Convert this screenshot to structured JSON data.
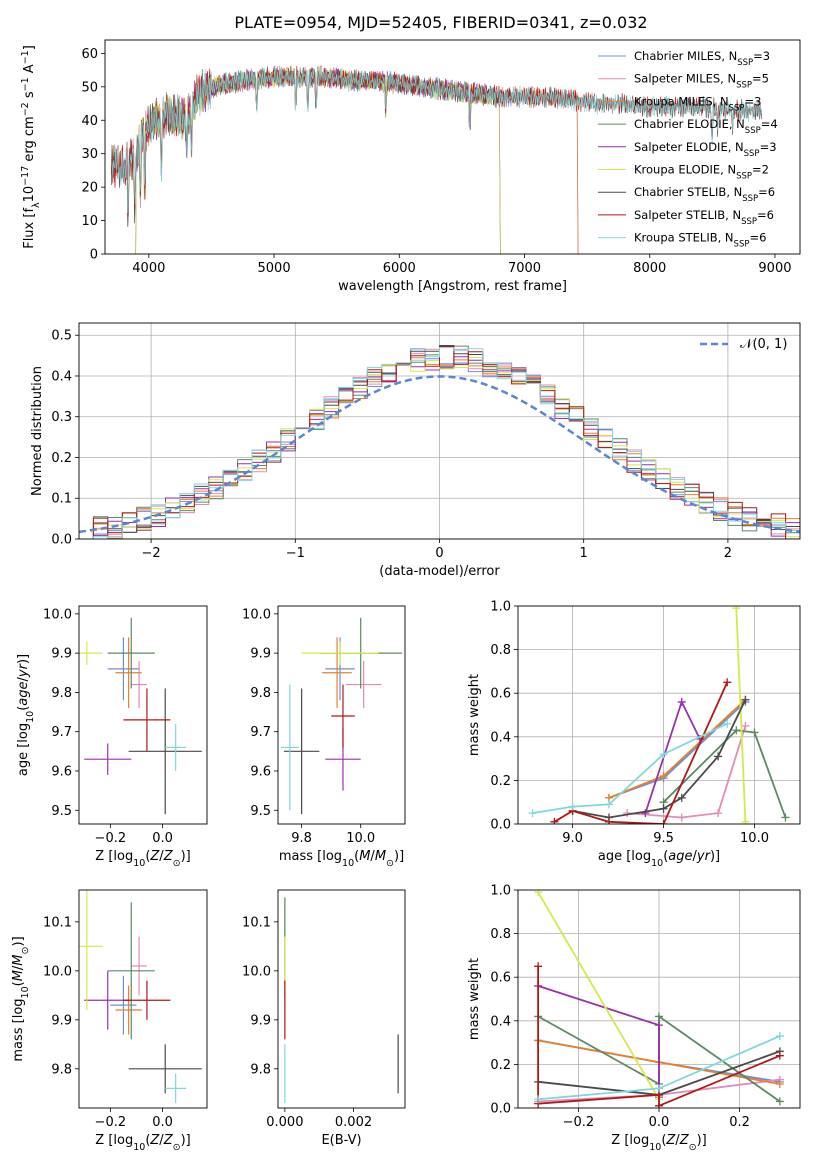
{
  "colors": {
    "Chabrier MILES": "#6b8fd6",
    "Salpeter MILES": "#e48ab8",
    "Kroupa MILES": "#e8802a",
    "Chabrier ELODIE": "#5b8a63",
    "Salpeter ELODIE": "#9b2fae",
    "Kroupa ELODIE": "#d7e84a",
    "Chabrier STELIB": "#4a4a4a",
    "Salpeter STELIB": "#b01818",
    "Kroupa STELIB": "#7fd8dc",
    "gauss": "#5b86d3"
  },
  "chart_data": [
    {
      "type": "line",
      "title": "PLATE=0954, MJD=52405, FIBERID=0341, z=0.032",
      "xlabel": "wavelength [Angstrom, rest frame]",
      "ylabel": "Flux [f_λ 10^-17 erg cm^-2 s^-1 A^-1]",
      "xlim": [
        3650,
        9200
      ],
      "ylim": [
        0,
        64
      ],
      "xticks": [
        4000,
        5000,
        6000,
        7000,
        8000,
        9000
      ],
      "yticks": [
        0,
        10,
        20,
        30,
        40,
        50,
        60
      ],
      "legend_position": "top-right",
      "legend": [
        {
          "name": "Chabrier MILES, N",
          "sub": "SSP",
          "n": "=3"
        },
        {
          "name": "Salpeter MILES, N",
          "sub": "SSP",
          "n": "=5"
        },
        {
          "name": "Kroupa MILES, N",
          "sub": "SSP",
          "n": "=3"
        },
        {
          "name": "Chabrier ELODIE, N",
          "sub": "SSP",
          "n": "=4"
        },
        {
          "name": "Salpeter ELODIE, N",
          "sub": "SSP",
          "n": "=3"
        },
        {
          "name": "Kroupa ELODIE, N",
          "sub": "SSP",
          "n": "=2"
        },
        {
          "name": "Chabrier STELIB, N",
          "sub": "SSP",
          "n": "=6"
        },
        {
          "name": "Salpeter STELIB, N",
          "sub": "SSP",
          "n": "=6"
        },
        {
          "name": "Kroupa STELIB, N",
          "sub": "SSP",
          "n": "=6"
        }
      ],
      "continuum": [
        [
          3700,
          27
        ],
        [
          3800,
          26
        ],
        [
          3900,
          30
        ],
        [
          3950,
          36
        ],
        [
          4050,
          40
        ],
        [
          4150,
          42
        ],
        [
          4300,
          40
        ],
        [
          4400,
          48
        ],
        [
          4600,
          51
        ],
        [
          4800,
          52
        ],
        [
          5000,
          53
        ],
        [
          5200,
          53
        ],
        [
          5400,
          53
        ],
        [
          5600,
          52
        ],
        [
          5800,
          52
        ],
        [
          6000,
          51
        ],
        [
          6200,
          50
        ],
        [
          6400,
          49
        ],
        [
          6600,
          48
        ],
        [
          6800,
          47
        ],
        [
          7000,
          47
        ],
        [
          7200,
          47
        ],
        [
          7400,
          46
        ],
        [
          7600,
          45
        ],
        [
          7800,
          45
        ],
        [
          8000,
          44
        ],
        [
          8200,
          44
        ],
        [
          8400,
          44
        ],
        [
          8600,
          43
        ],
        [
          8900,
          43
        ]
      ],
      "series_ranges": [
        {
          "name": "Chabrier MILES",
          "x": [
            3700,
            7420
          ]
        },
        {
          "name": "Salpeter MILES",
          "x": [
            3700,
            7420
          ]
        },
        {
          "name": "Kroupa MILES",
          "x": [
            3700,
            7420
          ]
        },
        {
          "name": "Chabrier ELODIE",
          "x": [
            3900,
            6800
          ]
        },
        {
          "name": "Salpeter ELODIE",
          "x": [
            3900,
            6800
          ]
        },
        {
          "name": "Kroupa ELODIE",
          "x": [
            3900,
            6800
          ]
        },
        {
          "name": "Chabrier STELIB",
          "x": [
            3700,
            8900
          ]
        },
        {
          "name": "Salpeter STELIB",
          "x": [
            3700,
            8900
          ]
        },
        {
          "name": "Kroupa STELIB",
          "x": [
            3700,
            8900
          ]
        }
      ]
    },
    {
      "type": "line",
      "xlabel": "(data-model)/error",
      "ylabel": "Normed distribution",
      "xlim": [
        -2.5,
        2.5
      ],
      "ylim": [
        0,
        0.53
      ],
      "xticks": [
        -2,
        -1,
        0,
        1,
        2
      ],
      "yticks": [
        0.0,
        0.1,
        0.2,
        0.3,
        0.4,
        0.5
      ],
      "legend": [
        {
          "name": "𝒩(0, 1)"
        }
      ],
      "legend_position": "top-right",
      "step_histograms": "one step histogram per model, 0.1 bins, approx. normal(0,1)"
    },
    {
      "type": "scatter",
      "xlabel": "Z [log10(Z/Z☉)]",
      "ylabel": "age  [log10(age/yr)]",
      "xlim": [
        -0.32,
        0.17
      ],
      "ylim": [
        9.465,
        10.02
      ],
      "xticks": [
        -0.2,
        0.0
      ],
      "yticks": [
        9.5,
        9.6,
        9.7,
        9.8,
        9.9,
        10.0
      ],
      "points": [
        {
          "name": "Chabrier MILES",
          "x": -0.15,
          "y": 9.86,
          "xe": 0.06,
          "ye": 0.08
        },
        {
          "name": "Salpeter MILES",
          "x": -0.09,
          "y": 9.82,
          "xe": 0.03,
          "ye": 0.06
        },
        {
          "name": "Kroupa MILES",
          "x": -0.13,
          "y": 9.85,
          "xe": 0.05,
          "ye": 0.09
        },
        {
          "name": "Chabrier ELODIE",
          "x": -0.12,
          "y": 9.9,
          "xe": 0.09,
          "ye": 0.09
        },
        {
          "name": "Salpeter ELODIE",
          "x": -0.21,
          "y": 9.63,
          "xe": 0.09,
          "ye": 0.04
        },
        {
          "name": "Kroupa ELODIE",
          "x": -0.29,
          "y": 9.9,
          "xe": 0.06,
          "ye": 0.03
        },
        {
          "name": "Chabrier STELIB",
          "x": 0.01,
          "y": 9.65,
          "xe": 0.14,
          "ye": 0.16
        },
        {
          "name": "Salpeter STELIB",
          "x": -0.06,
          "y": 9.73,
          "xe": 0.09,
          "ye": 0.08
        },
        {
          "name": "Kroupa STELIB",
          "x": 0.05,
          "y": 9.66,
          "xe": 0.04,
          "ye": 0.06
        }
      ]
    },
    {
      "type": "scatter",
      "xlabel": "mass [log10(M/M☉)]",
      "ylabel": "",
      "xlim": [
        9.72,
        10.15
      ],
      "ylim": [
        9.465,
        10.02
      ],
      "xticks": [
        9.8,
        10.0
      ],
      "yticks": [
        9.5,
        9.6,
        9.7,
        9.8,
        9.9,
        10.0
      ],
      "points": [
        {
          "name": "Chabrier MILES",
          "x": 9.93,
          "y": 9.86,
          "xe": 0.05,
          "ye": 0.08
        },
        {
          "name": "Salpeter MILES",
          "x": 10.01,
          "y": 9.82,
          "xe": 0.06,
          "ye": 0.06
        },
        {
          "name": "Kroupa MILES",
          "x": 9.92,
          "y": 9.85,
          "xe": 0.05,
          "ye": 0.09
        },
        {
          "name": "Chabrier ELODIE",
          "x": 10.0,
          "y": 9.9,
          "xe": 0.14,
          "ye": 0.09
        },
        {
          "name": "Salpeter ELODIE",
          "x": 9.94,
          "y": 9.63,
          "xe": 0.06,
          "ye": 0.08
        },
        {
          "name": "Kroupa ELODIE",
          "x": 9.93,
          "y": 9.9,
          "xe": 0.13,
          "ye": 0.03
        },
        {
          "name": "Chabrier STELIB",
          "x": 9.8,
          "y": 9.65,
          "xe": 0.06,
          "ye": 0.16
        },
        {
          "name": "Salpeter STELIB",
          "x": 9.94,
          "y": 9.74,
          "xe": 0.04,
          "ye": 0.08
        },
        {
          "name": "Kroupa STELIB",
          "x": 9.76,
          "y": 9.66,
          "xe": 0.03,
          "ye": 0.16
        }
      ]
    },
    {
      "type": "line",
      "xlabel": "age  [log10(age/yr)]",
      "ylabel": "mass weight",
      "xlim": [
        8.7,
        10.25
      ],
      "ylim": [
        0,
        1
      ],
      "xticks": [
        9.0,
        9.5,
        10.0
      ],
      "yticks": [
        0.0,
        0.2,
        0.4,
        0.6,
        0.8,
        1.0
      ],
      "series": [
        {
          "name": "Chabrier MILES",
          "x": [
            9.2,
            9.5,
            9.95
          ],
          "y": [
            0.12,
            0.21,
            0.56
          ]
        },
        {
          "name": "Salpeter MILES",
          "x": [
            9.3,
            9.6,
            9.8,
            9.95
          ],
          "y": [
            0.05,
            0.03,
            0.05,
            0.45
          ]
        },
        {
          "name": "Kroupa MILES",
          "x": [
            9.2,
            9.5,
            9.95
          ],
          "y": [
            0.12,
            0.22,
            0.57
          ]
        },
        {
          "name": "Chabrier ELODIE",
          "x": [
            9.5,
            9.9,
            10.0,
            10.17
          ],
          "y": [
            0.1,
            0.43,
            0.42,
            0.03
          ]
        },
        {
          "name": "Salpeter ELODIE",
          "x": [
            9.4,
            9.6,
            9.7
          ],
          "y": [
            0.05,
            0.56,
            0.39
          ]
        },
        {
          "name": "Kroupa ELODIE",
          "x": [
            9.9,
            9.95
          ],
          "y": [
            0.99,
            0.01
          ]
        },
        {
          "name": "Chabrier STELIB",
          "x": [
            9.0,
            9.2,
            9.5,
            9.6,
            9.8,
            9.95
          ],
          "y": [
            0.06,
            0.03,
            0.07,
            0.12,
            0.31,
            0.57
          ]
        },
        {
          "name": "Salpeter STELIB",
          "x": [
            8.9,
            9.0,
            9.2,
            9.5,
            9.85
          ],
          "y": [
            0.01,
            0.06,
            0.01,
            0.0,
            0.65
          ]
        },
        {
          "name": "Kroupa STELIB",
          "x": [
            8.78,
            9.0,
            9.2,
            9.5,
            9.85
          ],
          "y": [
            0.05,
            0.08,
            0.09,
            0.32,
            0.46
          ]
        }
      ]
    },
    {
      "type": "scatter",
      "xlabel": "Z [log10(Z/Z☉)]",
      "ylabel": "mass [log10(M/M☉)]",
      "xlim": [
        -0.32,
        0.17
      ],
      "ylim": [
        9.72,
        10.165
      ],
      "xticks": [
        -0.2,
        0.0
      ],
      "yticks": [
        9.8,
        9.9,
        10.0,
        10.1
      ],
      "points": [
        {
          "name": "Chabrier MILES",
          "x": -0.15,
          "y": 9.93,
          "xe": 0.05,
          "ye": 0.06
        },
        {
          "name": "Salpeter MILES",
          "x": -0.09,
          "y": 10.01,
          "xe": 0.03,
          "ye": 0.06
        },
        {
          "name": "Kroupa MILES",
          "x": -0.13,
          "y": 9.92,
          "xe": 0.05,
          "ye": 0.05
        },
        {
          "name": "Chabrier ELODIE",
          "x": -0.12,
          "y": 10.0,
          "xe": 0.09,
          "ye": 0.14
        },
        {
          "name": "Salpeter ELODIE",
          "x": -0.21,
          "y": 9.94,
          "xe": 0.09,
          "ye": 0.06
        },
        {
          "name": "Kroupa ELODIE",
          "x": -0.29,
          "y": 10.05,
          "xe": 0.06,
          "ye": 0.13
        },
        {
          "name": "Chabrier STELIB",
          "x": 0.01,
          "y": 9.8,
          "xe": 0.14,
          "ye": 0.05
        },
        {
          "name": "Salpeter STELIB",
          "x": -0.06,
          "y": 9.94,
          "xe": 0.09,
          "ye": 0.04
        },
        {
          "name": "Kroupa STELIB",
          "x": 0.05,
          "y": 9.76,
          "xe": 0.04,
          "ye": 0.03
        }
      ]
    },
    {
      "type": "scatter",
      "xlabel": "E(B-V)",
      "ylabel": "",
      "xlim": [
        -0.0002,
        0.0035
      ],
      "ylim": [
        9.72,
        10.165
      ],
      "xticks": [
        0.0,
        0.002
      ],
      "yticks": [
        9.8,
        9.9,
        10.0,
        10.1
      ],
      "points": [
        {
          "name": "Chabrier ELODIE",
          "x": 0.0,
          "y": 10.05,
          "xe": 0.0,
          "ye": 0.1
        },
        {
          "name": "Kroupa ELODIE",
          "x": 0.0,
          "y": 10.0,
          "xe": 0.0,
          "ye": 0.07
        },
        {
          "name": "Salpeter STELIB",
          "x": 0.0,
          "y": 9.92,
          "xe": 0.0,
          "ye": 0.06
        },
        {
          "name": "Kroupa STELIB",
          "x": 0.0,
          "y": 9.79,
          "xe": 0.0,
          "ye": 0.06
        },
        {
          "name": "Chabrier STELIB",
          "x": 0.0033,
          "y": 9.81,
          "xe": 0.0,
          "ye": 0.06
        }
      ]
    },
    {
      "type": "line",
      "xlabel": "Z [log10(Z/Z☉)]",
      "ylabel": "mass weight",
      "xlim": [
        -0.35,
        0.35
      ],
      "ylim": [
        0,
        1
      ],
      "xticks": [
        -0.2,
        0.0,
        0.2
      ],
      "yticks": [
        0.0,
        0.2,
        0.4,
        0.6,
        0.8,
        1.0
      ],
      "series": [
        {
          "name": "Chabrier MILES",
          "x": [
            -0.3,
            0.0,
            0.3
          ],
          "y": [
            0.31,
            0.21,
            0.12
          ]
        },
        {
          "name": "Salpeter MILES",
          "x": [
            -0.3,
            0.0,
            0.3
          ],
          "y": [
            0.03,
            0.06,
            0.13
          ]
        },
        {
          "name": "Kroupa MILES",
          "x": [
            -0.3,
            0.0,
            0.3
          ],
          "y": [
            0.31,
            0.21,
            0.11
          ]
        },
        {
          "name": "Chabrier ELODIE",
          "x": [
            -0.3,
            0.0,
            0.0,
            0.3
          ],
          "y": [
            0.42,
            0.11,
            0.42,
            0.03
          ]
        },
        {
          "name": "Salpeter ELODIE",
          "x": [
            -0.3,
            0.0,
            0.0
          ],
          "y": [
            0.56,
            0.38,
            0.05
          ]
        },
        {
          "name": "Kroupa ELODIE",
          "x": [
            -0.3,
            0.0
          ],
          "y": [
            0.99,
            0.04
          ]
        },
        {
          "name": "Chabrier STELIB",
          "x": [
            -0.3,
            0.0,
            0.3
          ],
          "y": [
            0.12,
            0.06,
            0.26
          ]
        },
        {
          "name": "Salpeter STELIB",
          "x": [
            -0.3,
            -0.3,
            0.0,
            0.0,
            0.3
          ],
          "y": [
            0.65,
            0.02,
            0.06,
            0.01,
            0.24
          ]
        },
        {
          "name": "Kroupa STELIB",
          "x": [
            -0.3,
            0.0,
            0.3
          ],
          "y": [
            0.04,
            0.09,
            0.33
          ]
        }
      ]
    }
  ]
}
